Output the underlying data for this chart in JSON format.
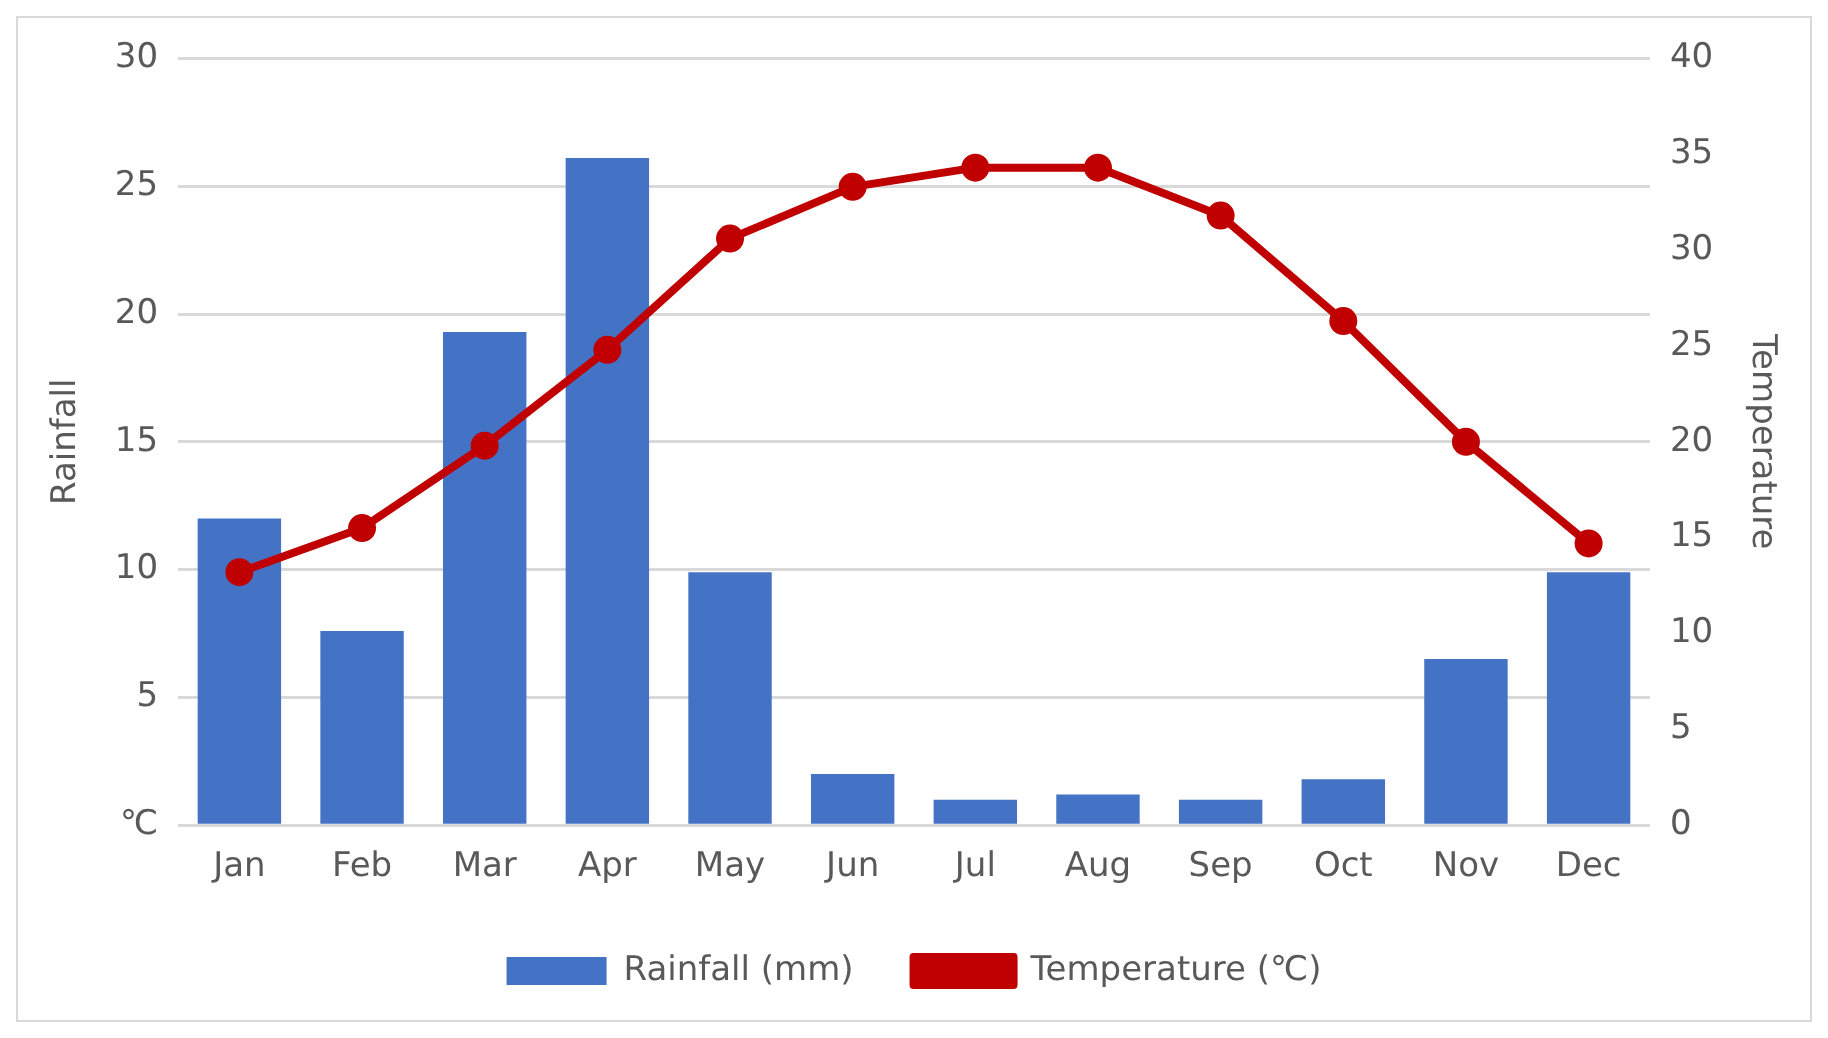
{
  "chart_data": {
    "type": "bar",
    "categories": [
      "Jan",
      "Feb",
      "Mar",
      "Apr",
      "May",
      "Jun",
      "Jul",
      "Aug",
      "Sep",
      "Oct",
      "Nov",
      "Dec"
    ],
    "series": [
      {
        "name": "Rainfall (mm)",
        "color": "#4472c4",
        "values": [
          12,
          7.6,
          19.3,
          26.1,
          9.9,
          2.0,
          1.0,
          1.2,
          1.0,
          1.8,
          6.5,
          9.9
        ]
      },
      {
        "name": "Temperature (℃)",
        "type": "line",
        "axis": "y2",
        "color": "#c00000",
        "values": [
          13.2,
          15.5,
          19.8,
          24.8,
          30.6,
          33.3,
          34.3,
          34.3,
          31.8,
          26.3,
          20.0,
          14.7
        ]
      }
    ],
    "ylabel": "Rainfall",
    "y2label": "Temperature",
    "ylim": [
      0,
      30
    ],
    "yticks": [
      {
        "value": 0,
        "label": "℃"
      },
      5,
      10,
      15,
      20,
      25,
      30
    ],
    "y2lim": [
      0,
      40
    ],
    "y2ticks": [
      0,
      5,
      10,
      15,
      20,
      25,
      30,
      35,
      40
    ],
    "grid": "y",
    "legend": "bottom",
    "marker": "circle",
    "line_style": "solid"
  }
}
